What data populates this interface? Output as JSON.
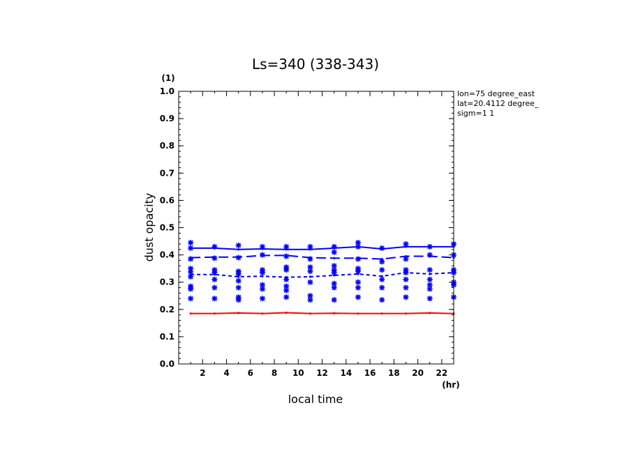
{
  "chart_data": {
    "type": "line",
    "title": "Ls=340 (338-343)",
    "xlabel": "local time",
    "ylabel": "dust opacity",
    "x_unit": "(hr)",
    "y_unit": "(1)",
    "xlim": [
      0,
      23
    ],
    "ylim": [
      0.0,
      1.0
    ],
    "x_ticks": [
      2,
      4,
      6,
      8,
      10,
      12,
      14,
      16,
      18,
      20,
      22
    ],
    "x_tick_labels": [
      "2",
      "4",
      "6",
      "8",
      "10",
      "12",
      "14",
      "16",
      "18",
      "20",
      "22"
    ],
    "y_ticks": [
      0.0,
      0.1,
      0.2,
      0.3,
      0.4,
      0.5,
      0.6,
      0.7,
      0.8,
      0.9,
      1.0
    ],
    "y_tick_labels": [
      "0.0",
      "0.1",
      "0.2",
      "0.3",
      "0.4",
      "0.5",
      "0.6",
      "0.7",
      "0.8",
      "0.9",
      "1.0"
    ],
    "grid": false,
    "info_text": [
      "lon=75 degree_east",
      "lat=20.4112 degree_",
      "sigm=1 1"
    ],
    "x": [
      1,
      3,
      5,
      7,
      9,
      11,
      13,
      15,
      17,
      19,
      21,
      23
    ],
    "series": [
      {
        "color": "#0000ff",
        "style": "solid",
        "values": [
          0.425,
          0.425,
          0.42,
          0.422,
          0.42,
          0.42,
          0.425,
          0.43,
          0.422,
          0.43,
          0.43,
          0.43
        ]
      },
      {
        "color": "#0000ff",
        "style": "longdash",
        "values": [
          0.39,
          0.392,
          0.392,
          0.398,
          0.398,
          0.39,
          0.388,
          0.388,
          0.385,
          0.395,
          0.395,
          0.39
        ]
      },
      {
        "color": "#0000ff",
        "style": "dash",
        "values": [
          0.328,
          0.328,
          0.32,
          0.322,
          0.318,
          0.32,
          0.325,
          0.33,
          0.322,
          0.335,
          0.33,
          0.335
        ]
      },
      {
        "color": "#ff0000",
        "style": "solid",
        "values": [
          0.185,
          0.185,
          0.187,
          0.185,
          0.188,
          0.185,
          0.186,
          0.185,
          0.185,
          0.185,
          0.187,
          0.185
        ]
      }
    ],
    "scatter": {
      "color": "#0000ff",
      "points": [
        [
          1,
          0.445
        ],
        [
          1,
          0.425
        ],
        [
          1,
          0.385
        ],
        [
          1,
          0.35
        ],
        [
          1,
          0.338
        ],
        [
          1,
          0.32
        ],
        [
          1,
          0.285
        ],
        [
          1,
          0.275
        ],
        [
          1,
          0.24
        ],
        [
          3,
          0.43
        ],
        [
          3,
          0.388
        ],
        [
          3,
          0.345
        ],
        [
          3,
          0.335
        ],
        [
          3,
          0.31
        ],
        [
          3,
          0.28
        ],
        [
          3,
          0.24
        ],
        [
          5,
          0.435
        ],
        [
          5,
          0.39
        ],
        [
          5,
          0.34
        ],
        [
          5,
          0.33
        ],
        [
          5,
          0.305
        ],
        [
          5,
          0.28
        ],
        [
          5,
          0.245
        ],
        [
          5,
          0.235
        ],
        [
          7,
          0.43
        ],
        [
          7,
          0.4
        ],
        [
          7,
          0.345
        ],
        [
          7,
          0.335
        ],
        [
          7,
          0.29
        ],
        [
          7,
          0.275
        ],
        [
          7,
          0.24
        ],
        [
          9,
          0.43
        ],
        [
          9,
          0.395
        ],
        [
          9,
          0.355
        ],
        [
          9,
          0.345
        ],
        [
          9,
          0.31
        ],
        [
          9,
          0.285
        ],
        [
          9,
          0.27
        ],
        [
          9,
          0.245
        ],
        [
          11,
          0.43
        ],
        [
          11,
          0.385
        ],
        [
          11,
          0.355
        ],
        [
          11,
          0.34
        ],
        [
          11,
          0.3
        ],
        [
          11,
          0.25
        ],
        [
          11,
          0.235
        ],
        [
          13,
          0.43
        ],
        [
          13,
          0.41
        ],
        [
          13,
          0.36
        ],
        [
          13,
          0.345
        ],
        [
          13,
          0.335
        ],
        [
          13,
          0.295
        ],
        [
          13,
          0.28
        ],
        [
          13,
          0.235
        ],
        [
          15,
          0.445
        ],
        [
          15,
          0.43
        ],
        [
          15,
          0.385
        ],
        [
          15,
          0.35
        ],
        [
          15,
          0.34
        ],
        [
          15,
          0.3
        ],
        [
          15,
          0.28
        ],
        [
          15,
          0.245
        ],
        [
          17,
          0.425
        ],
        [
          17,
          0.375
        ],
        [
          17,
          0.345
        ],
        [
          17,
          0.31
        ],
        [
          17,
          0.28
        ],
        [
          17,
          0.235
        ],
        [
          19,
          0.44
        ],
        [
          19,
          0.385
        ],
        [
          19,
          0.345
        ],
        [
          19,
          0.335
        ],
        [
          19,
          0.31
        ],
        [
          19,
          0.28
        ],
        [
          19,
          0.245
        ],
        [
          21,
          0.43
        ],
        [
          21,
          0.4
        ],
        [
          21,
          0.345
        ],
        [
          21,
          0.31
        ],
        [
          21,
          0.29
        ],
        [
          21,
          0.275
        ],
        [
          21,
          0.24
        ],
        [
          23,
          0.44
        ],
        [
          23,
          0.4
        ],
        [
          23,
          0.345
        ],
        [
          23,
          0.335
        ],
        [
          23,
          0.3
        ],
        [
          23,
          0.29
        ],
        [
          23,
          0.245
        ]
      ]
    }
  }
}
